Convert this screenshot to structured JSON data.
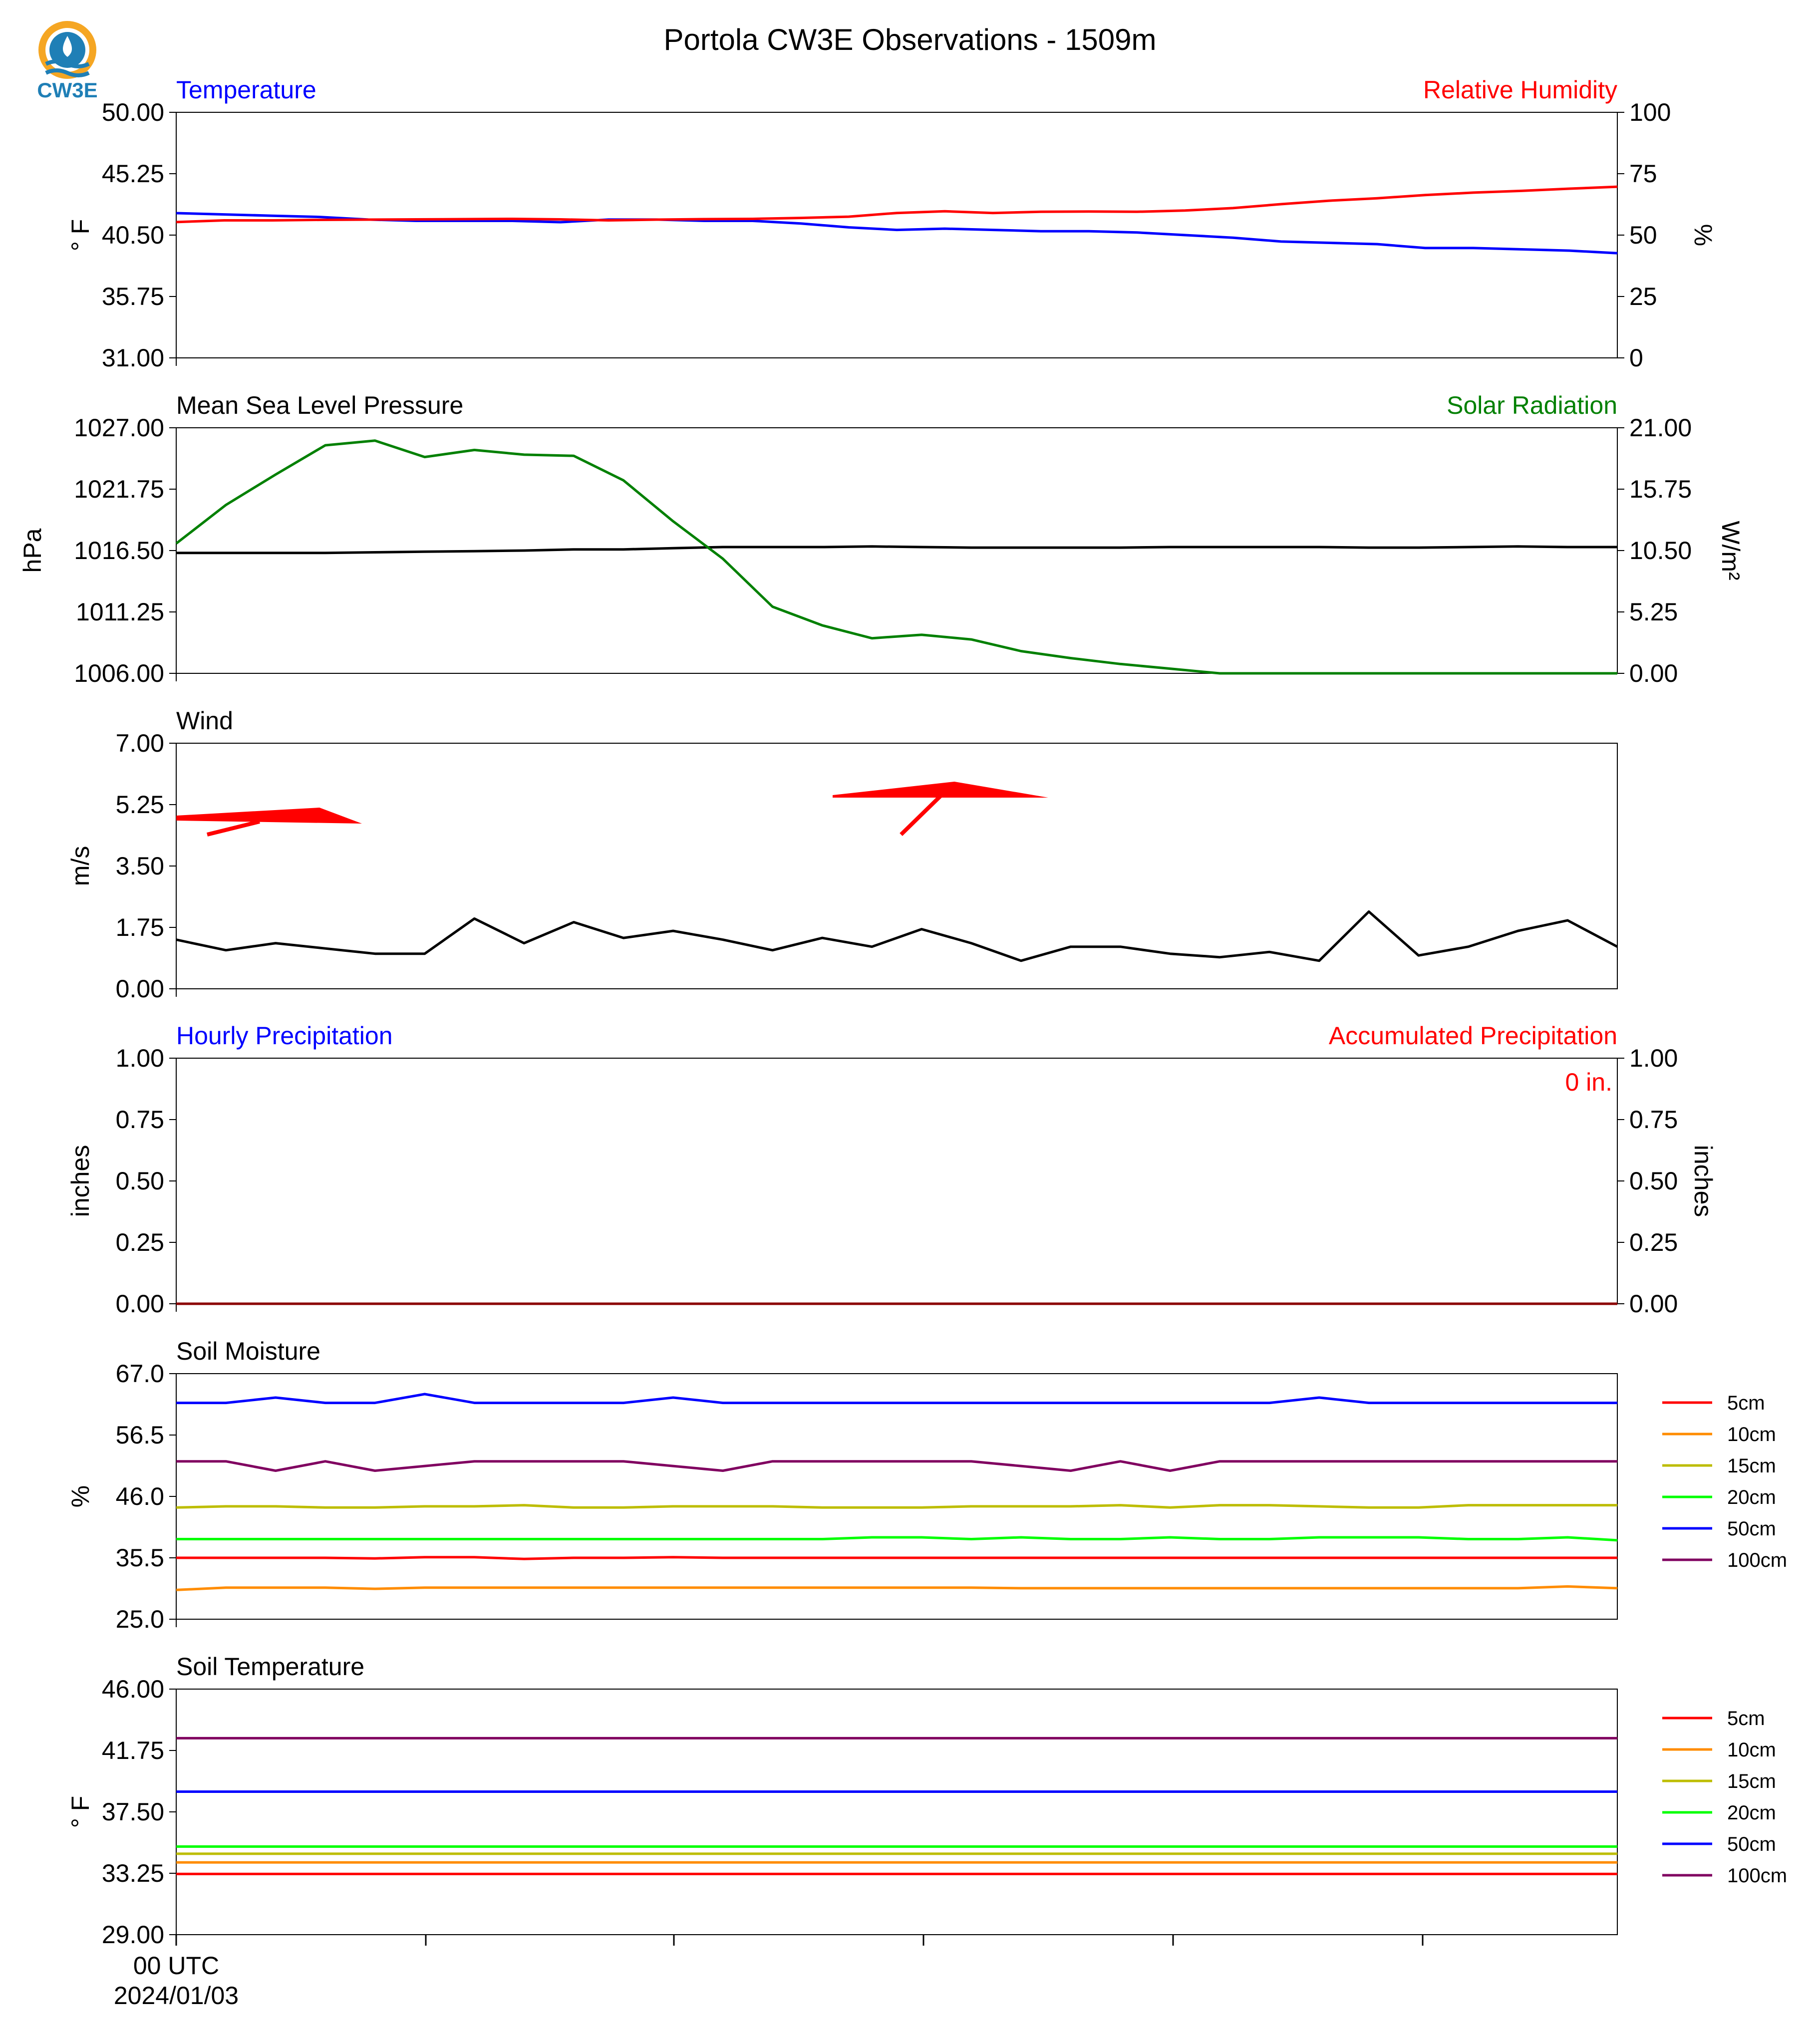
{
  "title": "Portola CW3E Observations - 1509m",
  "logo": {
    "text": "CW3E",
    "colors": {
      "orange": "#F5A623",
      "blue": "#1F7FB6"
    }
  },
  "x_axis": {
    "start_tick_label": "00 UTC",
    "start_date_label": "2024/01/03"
  },
  "chart_data": [
    {
      "panel": "temperature_rh",
      "type": "line",
      "left_title": "Temperature",
      "left_title_color": "#0000FF",
      "right_title": "Relative Humidity",
      "right_title_color": "#FF0000",
      "ylabel_left": "° F",
      "ylabel_right": "%",
      "ylim_left": [
        31,
        50
      ],
      "ylim_right": [
        0,
        100
      ],
      "yticks_left": [
        "31.00",
        "35.75",
        "40.50",
        "45.25",
        "50.00"
      ],
      "yticks_right": [
        "0",
        "25",
        "50",
        "75",
        "100"
      ],
      "series": [
        {
          "axis": "left",
          "color": "#0000FF",
          "values": [
            42.2,
            42.1,
            42.0,
            41.9,
            41.7,
            41.6,
            41.6,
            41.6,
            41.5,
            41.7,
            41.7,
            41.6,
            41.6,
            41.4,
            41.1,
            40.9,
            41.0,
            40.9,
            40.8,
            40.8,
            40.7,
            40.5,
            40.3,
            40.0,
            39.9,
            39.8,
            39.5,
            39.5,
            39.4,
            39.3,
            39.1
          ]
        },
        {
          "axis": "right",
          "color": "#FF0000",
          "values": [
            55.3,
            56.0,
            56.0,
            56.2,
            56.3,
            56.4,
            56.5,
            56.6,
            56.4,
            56.0,
            56.3,
            56.5,
            56.6,
            57.0,
            57.5,
            59.0,
            59.7,
            59.0,
            59.5,
            59.6,
            59.5,
            60.0,
            61.0,
            62.6,
            64.0,
            65.0,
            66.3,
            67.3,
            68.0,
            68.9,
            69.7
          ]
        }
      ]
    },
    {
      "panel": "pressure_solar",
      "type": "line",
      "left_title": "Mean Sea Level Pressure",
      "left_title_color": "#000000",
      "right_title": "Solar Radiation",
      "right_title_color": "#008000",
      "ylabel_left": "hPa",
      "ylabel_right": "W/m²",
      "ylim_left": [
        1006,
        1027
      ],
      "ylim_right": [
        0,
        21
      ],
      "yticks_left": [
        "1006.00",
        "1011.25",
        "1016.50",
        "1021.75",
        "1027.00"
      ],
      "yticks_right": [
        "0.00",
        "5.25",
        "10.50",
        "15.75",
        "21.00"
      ],
      "series": [
        {
          "axis": "left",
          "color": "#000000",
          "values": [
            1016.3,
            1016.3,
            1016.3,
            1016.3,
            1016.35,
            1016.4,
            1016.45,
            1016.5,
            1016.6,
            1016.6,
            1016.7,
            1016.8,
            1016.8,
            1016.8,
            1016.85,
            1016.8,
            1016.75,
            1016.75,
            1016.75,
            1016.75,
            1016.8,
            1016.8,
            1016.8,
            1016.8,
            1016.75,
            1016.75,
            1016.8,
            1016.85,
            1016.8,
            1016.8
          ]
        },
        {
          "axis": "right",
          "color": "#008000",
          "values": [
            11.1,
            14.4,
            17.0,
            19.5,
            19.9,
            18.5,
            19.1,
            18.7,
            18.6,
            16.5,
            13.0,
            9.8,
            5.7,
            4.1,
            3.0,
            3.3,
            2.9,
            1.9,
            1.3,
            0.8,
            0.4,
            0.0,
            0.0,
            0.0,
            0.0,
            0.0,
            0.0,
            0.0,
            0.0,
            0.0
          ]
        }
      ]
    },
    {
      "panel": "wind",
      "type": "line",
      "left_title": "Wind",
      "left_title_color": "#000000",
      "ylabel_left": "m/s",
      "ylim_left": [
        0,
        7
      ],
      "yticks_left": [
        "0.00",
        "1.75",
        "3.50",
        "5.25",
        "7.00"
      ],
      "series": [
        {
          "axis": "left",
          "color": "#000000",
          "values": [
            1.4,
            1.1,
            1.3,
            1.15,
            1.0,
            1.0,
            2.0,
            1.3,
            1.9,
            1.45,
            1.65,
            1.4,
            1.1,
            1.45,
            1.2,
            1.7,
            1.3,
            0.8,
            1.2,
            1.2,
            1.0,
            0.9,
            1.05,
            0.8,
            2.2,
            0.95,
            1.2,
            1.65,
            1.95,
            1.2
          ]
        }
      ],
      "wind_barbs_color": "#FF0000"
    },
    {
      "panel": "precipitation",
      "type": "line",
      "left_title": "Hourly Precipitation",
      "left_title_color": "#0000FF",
      "right_title": "Accumulated Precipitation",
      "right_title_color": "#FF0000",
      "annotation": "0 in.",
      "ylabel_left": "inches",
      "ylabel_right": "inches",
      "ylim_left": [
        0,
        1
      ],
      "ylim_right": [
        0,
        1
      ],
      "yticks_left": [
        "0.00",
        "0.25",
        "0.50",
        "0.75",
        "1.00"
      ],
      "yticks_right": [
        "0.00",
        "0.25",
        "0.50",
        "0.75",
        "1.00"
      ],
      "series": [
        {
          "axis": "left",
          "color": "#0000FF",
          "values": [
            0,
            0
          ]
        },
        {
          "axis": "right",
          "color": "#8B0000",
          "values": [
            0,
            0
          ]
        }
      ]
    },
    {
      "panel": "soil_moisture",
      "type": "line",
      "left_title": "Soil Moisture",
      "left_title_color": "#000000",
      "ylabel_left": "%",
      "ylim_left": [
        25,
        67
      ],
      "yticks_left": [
        "25.0",
        "35.5",
        "46.0",
        "56.5",
        "67.0"
      ],
      "legend": "right",
      "series": [
        {
          "name": "5cm",
          "color": "#FF0000",
          "values": [
            35.5,
            35.5,
            35.5,
            35.5,
            35.4,
            35.6,
            35.6,
            35.3,
            35.5,
            35.5,
            35.6,
            35.5,
            35.5,
            35.5,
            35.5,
            35.5,
            35.5,
            35.5,
            35.5,
            35.5,
            35.5,
            35.5,
            35.5,
            35.5,
            35.5,
            35.5,
            35.5,
            35.5,
            35.5,
            35.5
          ]
        },
        {
          "name": "10cm",
          "color": "#FF8C00",
          "values": [
            30.0,
            30.4,
            30.4,
            30.4,
            30.2,
            30.4,
            30.4,
            30.4,
            30.4,
            30.4,
            30.4,
            30.4,
            30.4,
            30.4,
            30.4,
            30.4,
            30.4,
            30.3,
            30.3,
            30.3,
            30.3,
            30.3,
            30.3,
            30.3,
            30.3,
            30.3,
            30.3,
            30.3,
            30.6,
            30.3
          ]
        },
        {
          "name": "15cm",
          "color": "#BDBD00",
          "values": [
            44.1,
            44.3,
            44.3,
            44.1,
            44.1,
            44.3,
            44.3,
            44.5,
            44.1,
            44.1,
            44.3,
            44.3,
            44.3,
            44.1,
            44.1,
            44.1,
            44.3,
            44.3,
            44.3,
            44.5,
            44.1,
            44.5,
            44.5,
            44.3,
            44.1,
            44.1,
            44.5,
            44.5,
            44.5,
            44.5
          ]
        },
        {
          "name": "20cm",
          "color": "#00FF00",
          "values": [
            38.7,
            38.7,
            38.7,
            38.7,
            38.7,
            38.7,
            38.7,
            38.7,
            38.7,
            38.7,
            38.7,
            38.7,
            38.7,
            38.7,
            39.0,
            39.0,
            38.7,
            39.0,
            38.7,
            38.7,
            39.0,
            38.7,
            38.7,
            39.0,
            39.0,
            39.0,
            38.7,
            38.7,
            39.0,
            38.5
          ]
        },
        {
          "name": "50cm",
          "color": "#0000FF",
          "values": [
            62.0,
            62.0,
            62.9,
            62.0,
            62.0,
            63.5,
            62.0,
            62.0,
            62.0,
            62.0,
            62.9,
            62.0,
            62.0,
            62.0,
            62.0,
            62.0,
            62.0,
            62.0,
            62.0,
            62.0,
            62.0,
            62.0,
            62.0,
            62.9,
            62.0,
            62.0,
            62.0,
            62.0,
            62.0,
            62.0
          ]
        },
        {
          "name": "100cm",
          "color": "#800060",
          "values": [
            52.0,
            52.0,
            50.4,
            52.0,
            50.4,
            51.2,
            52.0,
            52.0,
            52.0,
            52.0,
            51.2,
            50.4,
            52.0,
            52.0,
            52.0,
            52.0,
            52.0,
            51.2,
            50.4,
            52.0,
            50.4,
            52.0,
            52.0,
            52.0,
            52.0,
            52.0,
            52.0,
            52.0,
            52.0,
            52.0
          ]
        }
      ]
    },
    {
      "panel": "soil_temperature",
      "type": "line",
      "left_title": "Soil Temperature",
      "left_title_color": "#000000",
      "ylabel_left": "° F",
      "ylim_left": [
        29,
        46
      ],
      "yticks_left": [
        "29.00",
        "33.25",
        "37.50",
        "41.75",
        "46.00"
      ],
      "legend": "right",
      "series": [
        {
          "name": "5cm",
          "color": "#FF0000",
          "values": [
            33.2,
            33.2
          ]
        },
        {
          "name": "10cm",
          "color": "#FF8C00",
          "values": [
            34.0,
            34.0
          ]
        },
        {
          "name": "15cm",
          "color": "#BDBD00",
          "values": [
            34.6,
            34.6
          ]
        },
        {
          "name": "20cm",
          "color": "#00FF00",
          "values": [
            35.1,
            35.1
          ]
        },
        {
          "name": "50cm",
          "color": "#0000FF",
          "values": [
            38.9,
            38.9
          ]
        },
        {
          "name": "100cm",
          "color": "#800060",
          "values": [
            42.6,
            42.6
          ]
        }
      ]
    }
  ]
}
